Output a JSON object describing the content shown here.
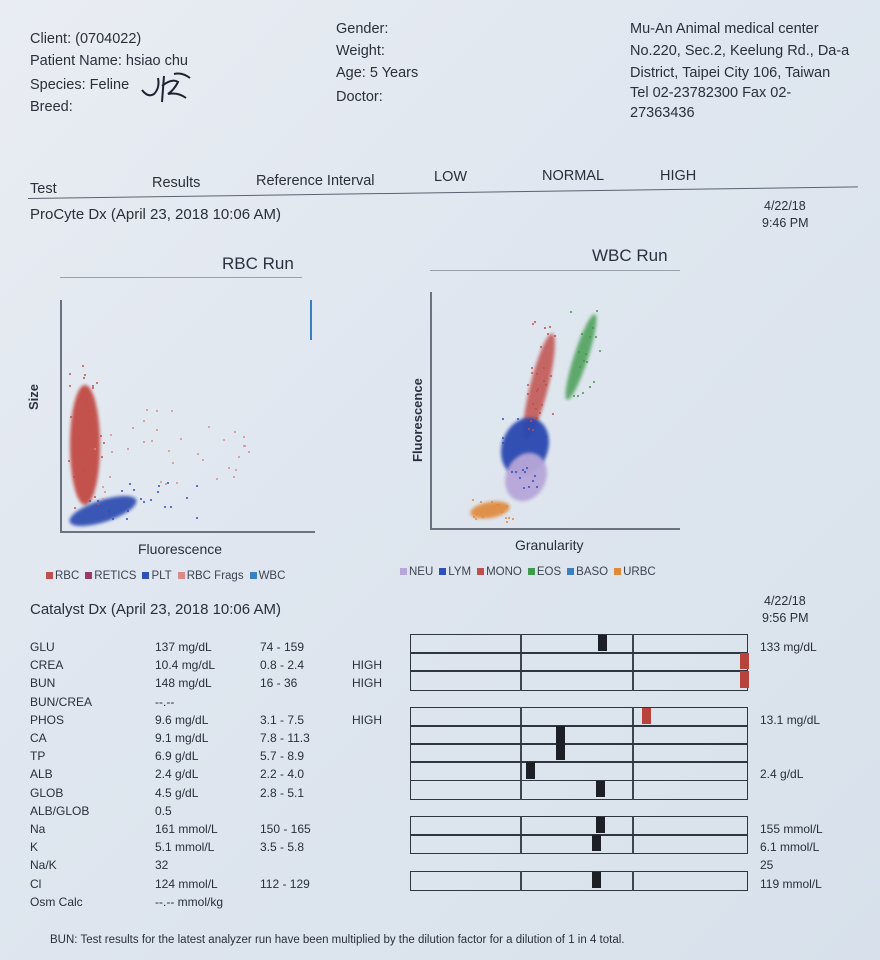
{
  "client": {
    "client_label": "Client:",
    "client_value": "(0704022)",
    "patient_label": "Patient Name:",
    "patient_value": "hsiao chu",
    "species_label": "Species:",
    "species_value": "Feline",
    "breed_label": "Breed:"
  },
  "patient_info": {
    "gender_label": "Gender:",
    "weight_label": "Weight:",
    "age_label": "Age:",
    "age_value": "5 Years",
    "doctor_label": "Doctor:"
  },
  "clinic": {
    "name": "Mu-An Animal medical center",
    "address_line1": "No.220, Sec.2, Keelung Rd., Da-a",
    "address_line2": "District, Taipei City 106, Taiwan",
    "phone_line": "Tel 02-23782300  Fax 02-",
    "fax_line2": "27363436"
  },
  "column_headers": {
    "test": "Test",
    "results": "Results",
    "reference": "Reference Interval",
    "low": "LOW",
    "normal": "NORMAL",
    "high": "HIGH"
  },
  "procyte": {
    "title": "ProCyte Dx (April 23, 2018 10:06 AM)",
    "date": "4/22/18",
    "time": "9:46 PM",
    "rbc_title": "RBC Run",
    "rbc_xlabel": "Fluorescence",
    "rbc_ylabel": "Size",
    "wbc_title": "WBC Run",
    "wbc_xlabel": "Granularity",
    "wbc_ylabel": "Fluorescence",
    "rbc_legend": [
      {
        "label": "RBC",
        "color": "#c0504d"
      },
      {
        "label": "RETICS",
        "color": "#9b3a6a"
      },
      {
        "label": "PLT",
        "color": "#2f50b8"
      },
      {
        "label": "RBC Frags",
        "color": "#d98b8b"
      },
      {
        "label": "WBC",
        "color": "#3a7fc0"
      }
    ],
    "wbc_legend": [
      {
        "label": "NEU",
        "color": "#b7a6d9"
      },
      {
        "label": "LYM",
        "color": "#2f50b8"
      },
      {
        "label": "MONO",
        "color": "#c0504d"
      },
      {
        "label": "EOS",
        "color": "#3f9a4c"
      },
      {
        "label": "BASO",
        "color": "#3a7fc0"
      },
      {
        "label": "URBC",
        "color": "#e0893a"
      }
    ]
  },
  "catalyst": {
    "title": "Catalyst Dx (April 23, 2018 10:06 AM)",
    "date": "4/22/18",
    "time": "9:56 PM",
    "rows": [
      {
        "test": "GLU",
        "result": "137 mg/dL",
        "ref": "74 - 159",
        "flag": "",
        "side": "133 mg/dL"
      },
      {
        "test": "CREA",
        "result": "10.4 mg/dL",
        "ref": "0.8 - 2.4",
        "flag": "HIGH",
        "side": ""
      },
      {
        "test": "BUN",
        "result": "148 mg/dL",
        "ref": "16 - 36",
        "flag": "HIGH",
        "side": ""
      },
      {
        "test": "BUN/CREA",
        "result": "--.--",
        "ref": "",
        "flag": "",
        "side": ""
      },
      {
        "test": "PHOS",
        "result": "9.6 mg/dL",
        "ref": "3.1 - 7.5",
        "flag": "HIGH",
        "side": "13.1 mg/dL"
      },
      {
        "test": "CA",
        "result": "9.1 mg/dL",
        "ref": "7.8 - 11.3",
        "flag": "",
        "side": ""
      },
      {
        "test": "TP",
        "result": "6.9 g/dL",
        "ref": "5.7 - 8.9",
        "flag": "",
        "side": ""
      },
      {
        "test": "ALB",
        "result": "2.4 g/dL",
        "ref": "2.2 - 4.0",
        "flag": "",
        "side": "2.4 g/dL"
      },
      {
        "test": "GLOB",
        "result": "4.5 g/dL",
        "ref": "2.8 - 5.1",
        "flag": "",
        "side": ""
      },
      {
        "test": "ALB/GLOB",
        "result": "0.5",
        "ref": "",
        "flag": "",
        "side": ""
      },
      {
        "test": "Na",
        "result": "161 mmol/L",
        "ref": "150 - 165",
        "flag": "",
        "side": "155 mmol/L"
      },
      {
        "test": "K",
        "result": "5.1 mmol/L",
        "ref": "3.5 - 5.8",
        "flag": "",
        "side": "6.1 mmol/L"
      },
      {
        "test": "Na/K",
        "result": "32",
        "ref": "",
        "flag": "",
        "side": "25"
      },
      {
        "test": "Cl",
        "result": "124 mmol/L",
        "ref": "112 - 129",
        "flag": "",
        "side": "119 mmol/L"
      },
      {
        "test": "Osm Calc",
        "result": "--.--  mmol/kg",
        "ref": "",
        "flag": "",
        "side": ""
      }
    ]
  },
  "footnote": "BUN: Test results for the latest analyzer run have been multiplied by the dilution factor for a dilution of 1 in 4 total.",
  "colors": {
    "high_marker": "#b8423c",
    "normal_marker": "#1c1f26"
  }
}
